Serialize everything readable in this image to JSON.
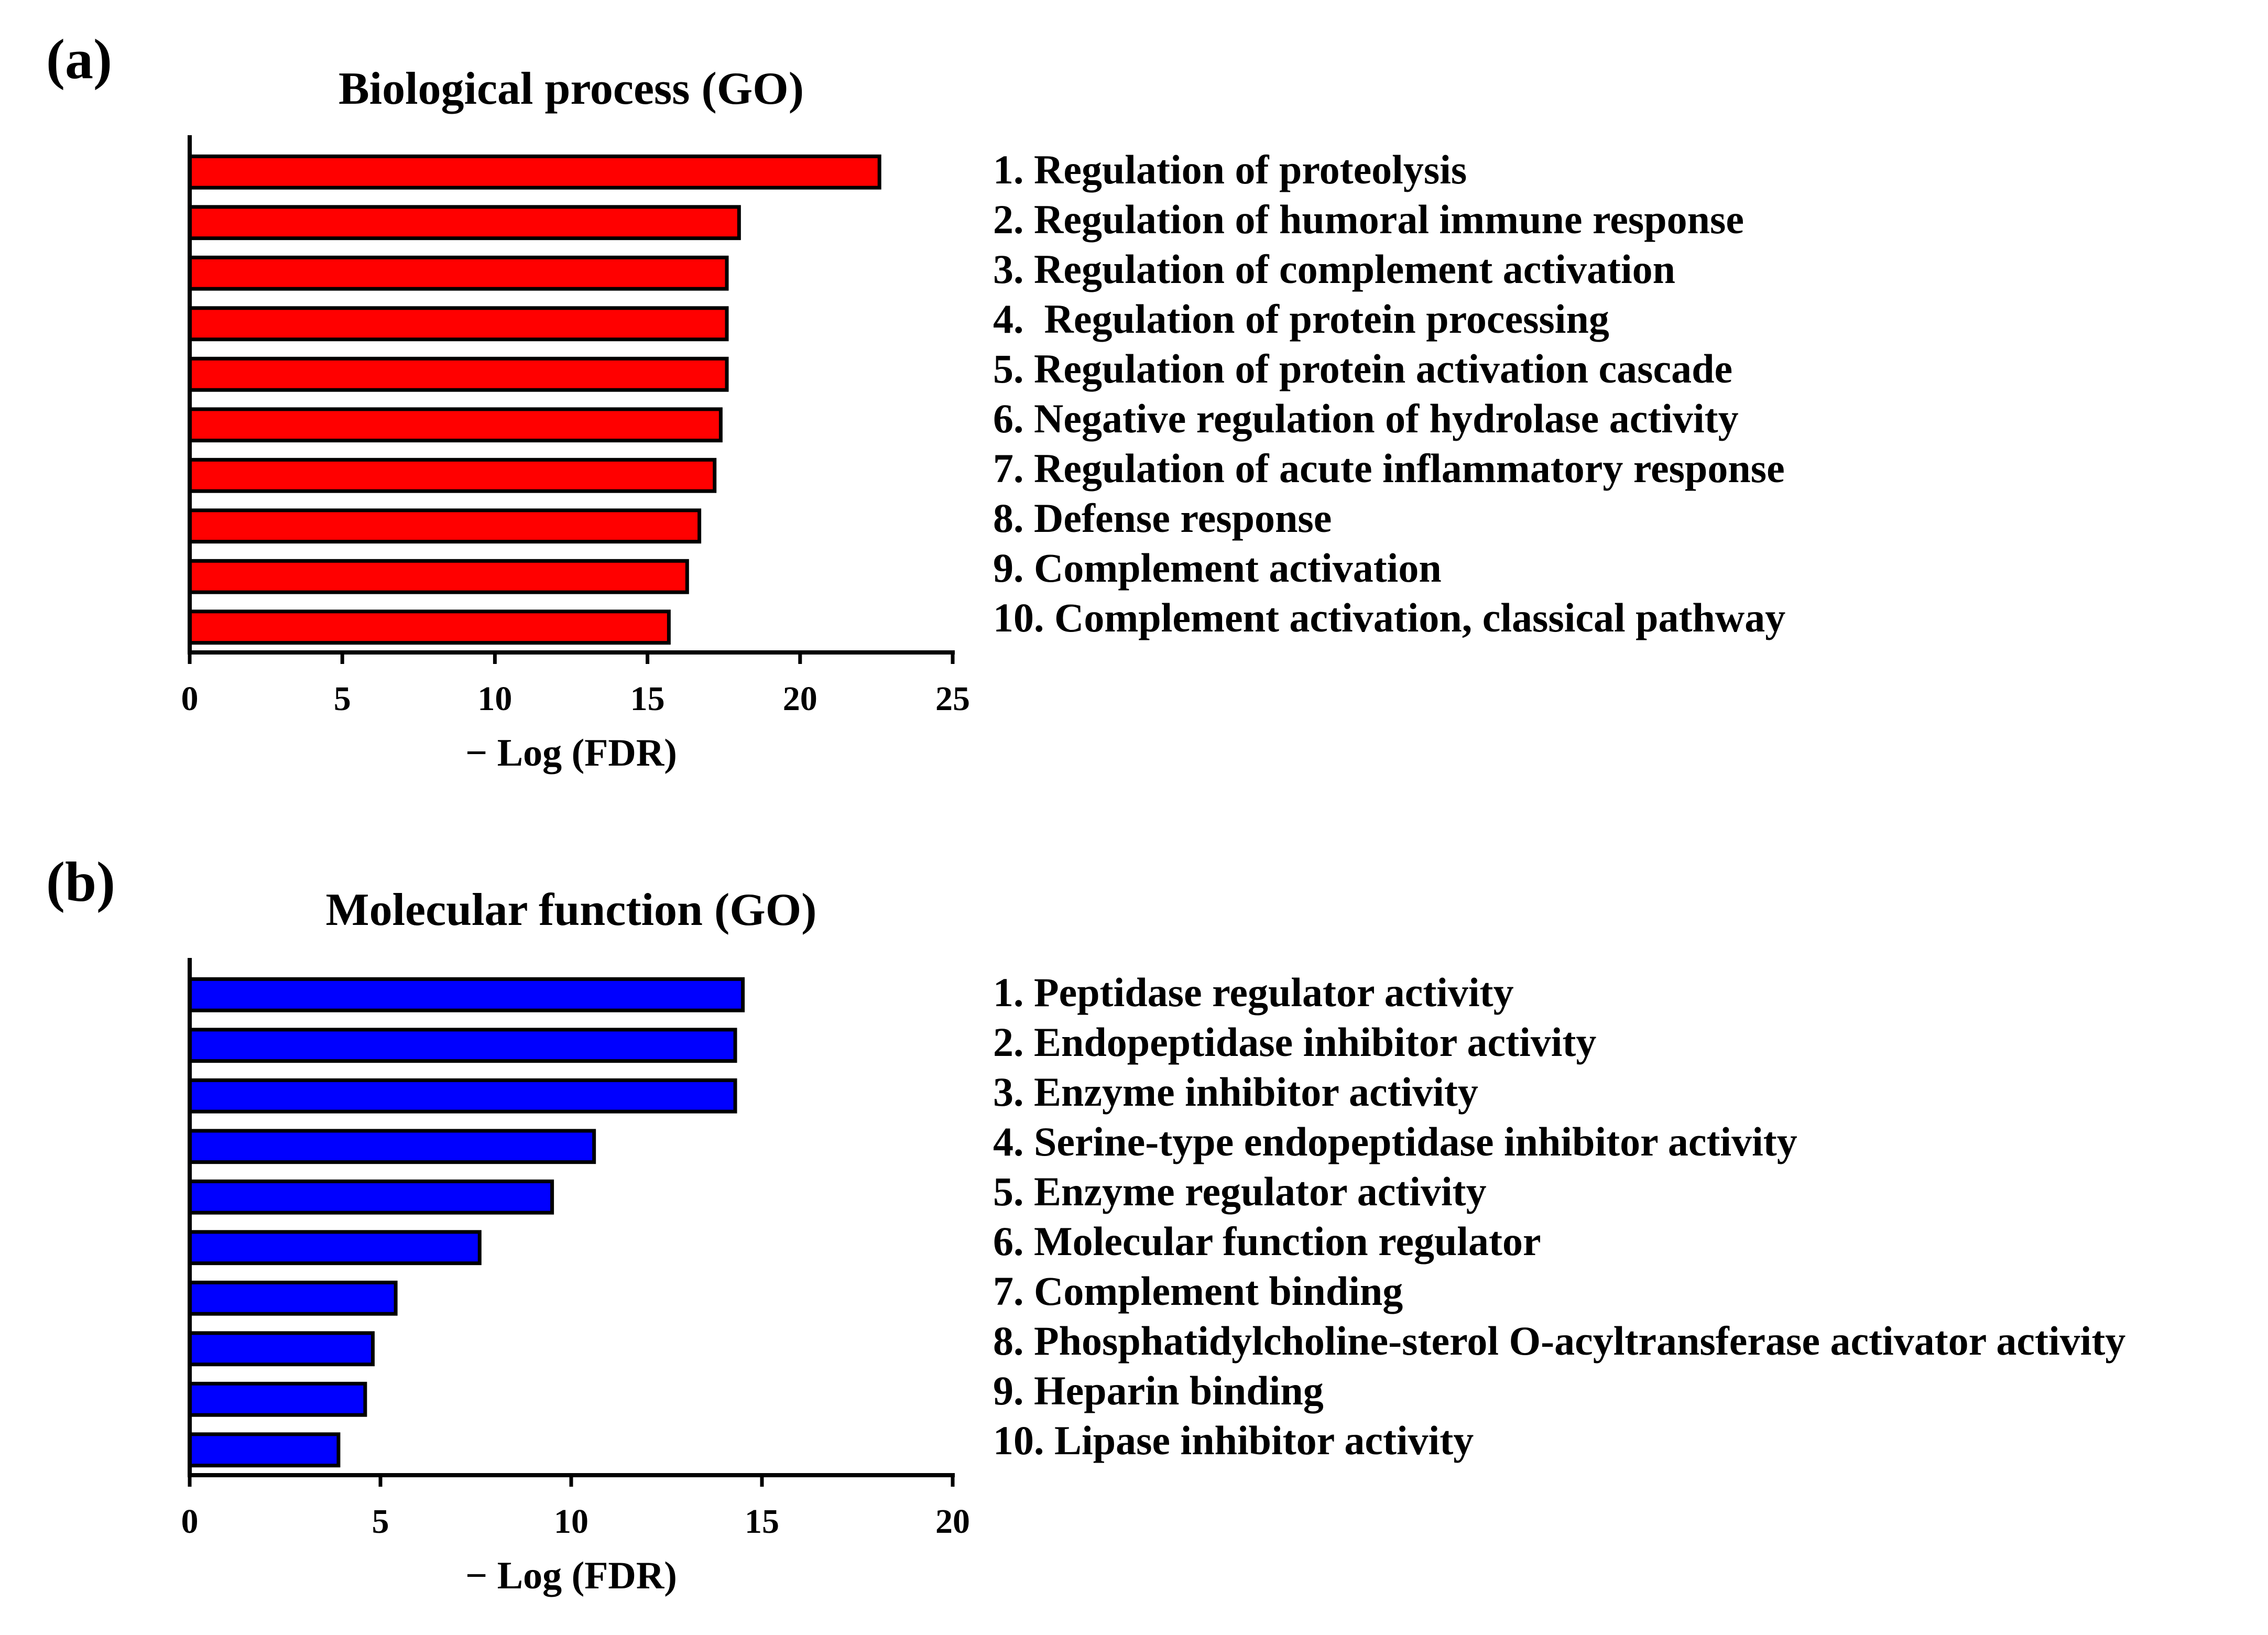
{
  "panels": [
    {
      "letter": "(a)",
      "color": "#ff0000",
      "chart_data": {
        "type": "bar",
        "orientation": "horizontal",
        "title": "Biological process (GO)",
        "xlabel": "− Log (FDR)",
        "ylabel": "",
        "xlim": [
          0,
          25
        ],
        "xticks": [
          "0",
          "5",
          "10",
          "15",
          "20",
          "25"
        ],
        "categories": [
          "1. Regulation of proteolysis",
          "2. Regulation of humoral immune response",
          "3. Regulation of complement activation",
          "4.  Regulation of protein processing",
          "5. Regulation of protein activation cascade",
          "6. Negative regulation of hydrolase activity",
          "7. Regulation of acute inflammatory response",
          "8. Defense response",
          "9. Complement activation",
          "10. Complement activation, classical pathway"
        ],
        "values": [
          22.6,
          18.0,
          17.6,
          17.6,
          17.6,
          17.4,
          17.2,
          16.7,
          16.3,
          15.7
        ],
        "grid": false
      }
    },
    {
      "letter": "(b)",
      "color": "#0000ff",
      "chart_data": {
        "type": "bar",
        "orientation": "horizontal",
        "title": "Molecular function (GO)",
        "xlabel": "− Log (FDR)",
        "ylabel": "",
        "xlim": [
          0,
          20
        ],
        "xticks": [
          "0",
          "5",
          "10",
          "15",
          "20"
        ],
        "categories": [
          "1. Peptidase regulator activity",
          "2. Endopeptidase inhibitor activity",
          "3. Enzyme inhibitor activity",
          "4. Serine-type endopeptidase inhibitor activity",
          "5. Enzyme regulator activity",
          "6. Molecular function regulator",
          "7. Complement binding",
          "8. Phosphatidylcholine-sterol O-acyltransferase activator activity",
          "9. Heparin binding",
          "10. Lipase inhibitor activity"
        ],
        "values": [
          14.5,
          14.3,
          14.3,
          10.6,
          9.5,
          7.6,
          5.4,
          4.8,
          4.6,
          3.9
        ],
        "grid": false
      }
    }
  ]
}
